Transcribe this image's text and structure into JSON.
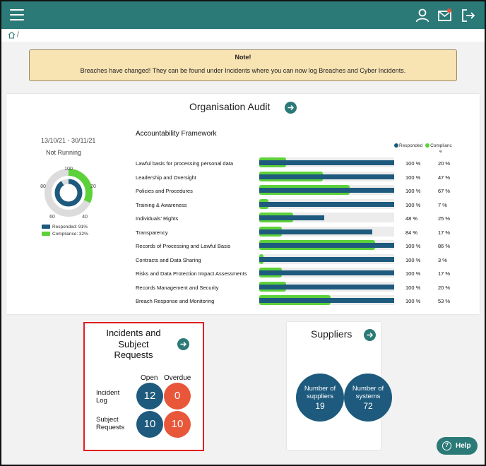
{
  "header": {
    "icons": [
      "menu-icon",
      "user-icon",
      "mail-icon",
      "logout-icon"
    ],
    "mail_badge": "",
    "colors": {
      "bar": "#2b7a78",
      "responded": "#1e5a7d",
      "compliance": "#5dd13a",
      "overdue": "#e8573a"
    }
  },
  "breadcrumb": {
    "separator": "/"
  },
  "note": {
    "title": "Note!",
    "message": "Breaches have changed! They can be found under Incidents where you can now log Breaches and Cyber Incidents."
  },
  "audit": {
    "title": "Organisation Audit",
    "date_range": "13/10/21 - 30/11/21",
    "status": "Not Running",
    "donut": {
      "scale_labels": [
        "100",
        "20",
        "40",
        "60",
        "80"
      ],
      "responded": 91,
      "compliance": 32
    },
    "legend": {
      "responded": "Responded: 91%",
      "compliance": "Compliance: 32%"
    },
    "framework_title": "Accountability Framework",
    "chart_legend": {
      "responded": "Responded",
      "compliance_a": "Complianc",
      "compliance_b": "e"
    },
    "rows": [
      {
        "label": "Lawful basis for processing personal data",
        "responded": 100,
        "compliance": 20,
        "responded_text": "100 %",
        "compliance_text": "20 %"
      },
      {
        "label": "Leadership and Oversight",
        "responded": 100,
        "compliance": 47,
        "responded_text": "100 %",
        "compliance_text": "47 %"
      },
      {
        "label": "Policies and Procedures",
        "responded": 100,
        "compliance": 67,
        "responded_text": "100 %",
        "compliance_text": "67 %"
      },
      {
        "label": "Training & Awareness",
        "responded": 100,
        "compliance": 7,
        "responded_text": "100 %",
        "compliance_text": "7 %"
      },
      {
        "label": "Individuals' Rights",
        "responded": 48,
        "compliance": 25,
        "responded_text": "48 %",
        "compliance_text": "25 %"
      },
      {
        "label": "Transparency",
        "responded": 84,
        "compliance": 17,
        "responded_text": "84 %",
        "compliance_text": "17 %"
      },
      {
        "label": "Records of Processing and Lawful Basis",
        "responded": 100,
        "compliance": 86,
        "responded_text": "100 %",
        "compliance_text": "86 %"
      },
      {
        "label": "Contracts and Data Sharing",
        "responded": 100,
        "compliance": 3,
        "responded_text": "100 %",
        "compliance_text": "3 %"
      },
      {
        "label": "Risks and Data Protection Impact Assessments",
        "responded": 100,
        "compliance": 17,
        "responded_text": "100 %",
        "compliance_text": "17 %"
      },
      {
        "label": "Records Management and Security",
        "responded": 100,
        "compliance": 20,
        "responded_text": "100 %",
        "compliance_text": "20 %"
      },
      {
        "label": "Breach Response and Monitoring",
        "responded": 100,
        "compliance": 53,
        "responded_text": "100 %",
        "compliance_text": "53 %"
      }
    ]
  },
  "incidents": {
    "title_lines": [
      "Incidents and",
      "Subject",
      "Requests"
    ],
    "col_open": "Open",
    "col_overdue": "Overdue",
    "incident_log_lines": [
      "Incident",
      "Log"
    ],
    "subject_requests_lines": [
      "Subject",
      "Requests"
    ],
    "incident_open": "12",
    "incident_overdue": "0",
    "subject_open": "10",
    "subject_overdue": "10"
  },
  "suppliers": {
    "title": "Suppliers",
    "num_suppliers_lines": [
      "Number of",
      "suppliers"
    ],
    "num_suppliers": "19",
    "num_systems_lines": [
      "Number of",
      "systems"
    ],
    "num_systems": "72"
  },
  "help": {
    "label": "Help",
    "icon": "question-icon"
  }
}
